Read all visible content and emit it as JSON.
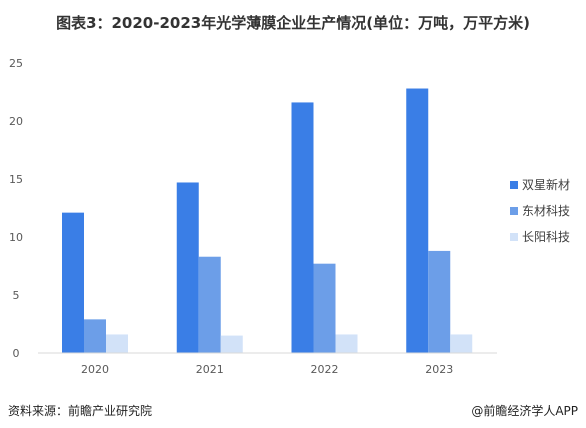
{
  "header": {
    "title": "图表3：2020-2023年光学薄膜企业生产情况(单位：万吨，万平方米)"
  },
  "footer": {
    "source": "资料来源：前瞻产业研究院",
    "credit": "@前瞻经济学人APP"
  },
  "colors": {
    "series_1": "#3A7EE6",
    "series_2": "#6C9EE8",
    "series_3": "#D2E2F8",
    "axis": "#D9D9D9"
  },
  "chart_data": {
    "type": "bar",
    "title": "图表3：2020-2023年光学薄膜企业生产情况(单位：万吨，万平方米)",
    "xlabel": "",
    "ylabel": "",
    "categories": [
      "2020",
      "2021",
      "2022",
      "2023"
    ],
    "ylim": [
      0,
      25
    ],
    "yticks": [
      0,
      5,
      10,
      15,
      20,
      25
    ],
    "grid": false,
    "legend_position": "right",
    "series": [
      {
        "name": "双星新材",
        "values": [
          12.1,
          14.7,
          21.6,
          22.8
        ]
      },
      {
        "name": "东材科技",
        "values": [
          2.9,
          8.3,
          7.7,
          8.8
        ]
      },
      {
        "name": "长阳科技",
        "values": [
          1.6,
          1.5,
          1.6,
          1.6
        ]
      }
    ]
  }
}
